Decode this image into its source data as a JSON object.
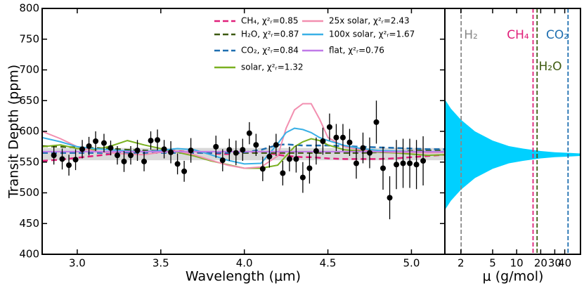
{
  "chart_data": [
    {
      "type": "line",
      "xlabel": "Wavelength (μm)",
      "ylabel": "Transit Depth (ppm)",
      "xlim": [
        2.79,
        5.2
      ],
      "ylim": [
        400,
        800
      ],
      "xticks": [
        {
          "value": 3.0,
          "label": "3.0"
        },
        {
          "value": 3.5,
          "label": "3.5"
        },
        {
          "value": 4.0,
          "label": "4.0"
        },
        {
          "value": 4.5,
          "label": "4.5"
        },
        {
          "value": 5.0,
          "label": "5.0"
        }
      ],
      "yticks": [
        400,
        450,
        500,
        550,
        600,
        650,
        700,
        750,
        800
      ],
      "band": {
        "low": 553,
        "high": 573,
        "color": "#cfcfcf"
      },
      "series": [
        {
          "name": "CH₄, χ²ᵣ=0.85",
          "color": "#e0207a",
          "style": "dashed",
          "x": [
            2.79,
            2.9,
            3.0,
            3.1,
            3.2,
            3.3,
            3.4,
            3.5,
            3.6,
            3.7,
            3.8,
            3.9,
            4.0,
            4.1,
            4.2,
            4.25,
            4.3,
            4.35,
            4.4,
            4.45,
            4.5,
            4.6,
            4.7,
            4.8,
            4.9,
            5.0,
            5.1,
            5.2
          ],
          "values": [
            552,
            554,
            557,
            560,
            563,
            566,
            568,
            569,
            568,
            566,
            564,
            563,
            565,
            567,
            562,
            560,
            559,
            558,
            558,
            557,
            556,
            555,
            555,
            555,
            556,
            558,
            560,
            562
          ]
        },
        {
          "name": "H₂O, χ²ᵣ=0.87",
          "color": "#3d5a10",
          "style": "dashed",
          "x": [
            2.79,
            2.9,
            3.0,
            3.1,
            3.2,
            3.3,
            3.4,
            3.5,
            3.6,
            3.7,
            3.8,
            3.9,
            4.0,
            4.1,
            4.2,
            4.25,
            4.3,
            4.35,
            4.4,
            4.45,
            4.5,
            4.6,
            4.7,
            4.8,
            4.9,
            5.0,
            5.1,
            5.2
          ],
          "values": [
            576,
            575,
            574,
            573,
            572,
            570,
            569,
            568,
            567,
            566,
            566,
            565,
            565,
            565,
            565,
            565,
            565,
            565,
            565,
            565,
            565,
            565,
            565,
            566,
            567,
            568,
            569,
            569
          ]
        },
        {
          "name": "CO₂, χ²ᵣ=0.84",
          "color": "#1f6fb0",
          "style": "dashed",
          "x": [
            2.79,
            2.9,
            3.0,
            3.1,
            3.2,
            3.3,
            3.4,
            3.5,
            3.6,
            3.7,
            3.8,
            3.9,
            4.0,
            4.1,
            4.2,
            4.25,
            4.3,
            4.35,
            4.4,
            4.45,
            4.5,
            4.6,
            4.7,
            4.8,
            4.9,
            5.0,
            5.1,
            5.2
          ],
          "values": [
            565,
            565,
            565,
            565,
            565,
            565,
            565,
            565,
            565,
            565,
            565,
            565,
            566,
            570,
            578,
            579,
            578,
            577,
            577,
            577,
            577,
            576,
            575,
            574,
            573,
            572,
            571,
            571
          ]
        },
        {
          "name": "solar, χ²ᵣ=1.32",
          "color": "#7ab020",
          "style": "solid",
          "x": [
            2.79,
            2.9,
            3.0,
            3.1,
            3.2,
            3.3,
            3.4,
            3.5,
            3.6,
            3.7,
            3.8,
            3.9,
            4.0,
            4.1,
            4.2,
            4.25,
            4.3,
            4.35,
            4.4,
            4.45,
            4.5,
            4.6,
            4.7,
            4.8,
            4.9,
            5.0,
            5.1,
            5.2
          ],
          "values": [
            575,
            578,
            572,
            570,
            576,
            585,
            578,
            572,
            566,
            560,
            552,
            546,
            540,
            540,
            545,
            560,
            575,
            583,
            588,
            585,
            578,
            570,
            568,
            566,
            565,
            563,
            561,
            562
          ]
        },
        {
          "name": "25x solar, χ²ᵣ=2.43",
          "color": "#f28fb0",
          "style": "solid",
          "x": [
            2.79,
            2.9,
            3.0,
            3.1,
            3.2,
            3.3,
            3.4,
            3.5,
            3.6,
            3.7,
            3.8,
            3.9,
            4.0,
            4.1,
            4.2,
            4.25,
            4.3,
            4.35,
            4.4,
            4.45,
            4.5,
            4.6,
            4.7,
            4.8,
            4.9,
            5.0,
            5.1,
            5.2
          ],
          "values": [
            600,
            588,
            575,
            568,
            565,
            563,
            562,
            566,
            568,
            562,
            553,
            545,
            540,
            542,
            560,
            605,
            635,
            645,
            645,
            620,
            590,
            575,
            570,
            567,
            566,
            566,
            565,
            566
          ]
        },
        {
          "name": "100x solar, χ²ᵣ=1.67",
          "color": "#3ab0e6",
          "style": "solid",
          "x": [
            2.79,
            2.9,
            3.0,
            3.1,
            3.2,
            3.3,
            3.4,
            3.5,
            3.6,
            3.7,
            3.8,
            3.9,
            4.0,
            4.1,
            4.2,
            4.25,
            4.3,
            4.35,
            4.4,
            4.45,
            4.5,
            4.6,
            4.7,
            4.8,
            4.9,
            5.0,
            5.1,
            5.2
          ],
          "values": [
            590,
            583,
            575,
            572,
            570,
            568,
            567,
            569,
            572,
            570,
            562,
            553,
            547,
            548,
            580,
            598,
            605,
            603,
            598,
            590,
            585,
            577,
            572,
            569,
            568,
            567,
            567,
            567
          ]
        },
        {
          "name": "flat, χ²ᵣ=0.76",
          "color": "#c07ae8",
          "style": "solid",
          "x": [
            2.79,
            5.2
          ],
          "values": [
            567,
            567
          ]
        }
      ],
      "points": {
        "color": "#000000",
        "x": [
          2.86,
          2.91,
          2.95,
          2.99,
          3.03,
          3.07,
          3.11,
          3.16,
          3.2,
          3.24,
          3.28,
          3.32,
          3.36,
          3.4,
          3.44,
          3.48,
          3.52,
          3.56,
          3.6,
          3.64,
          3.68,
          3.83,
          3.87,
          3.91,
          3.95,
          3.99,
          4.03,
          4.07,
          4.11,
          4.15,
          4.19,
          4.23,
          4.27,
          4.31,
          4.35,
          4.39,
          4.43,
          4.47,
          4.51,
          4.55,
          4.59,
          4.63,
          4.67,
          4.71,
          4.75,
          4.79,
          4.83,
          4.87,
          4.91,
          4.95,
          4.99,
          5.03,
          5.07
        ],
        "values": [
          561,
          555,
          545,
          554,
          571,
          576,
          584,
          581,
          573,
          561,
          551,
          561,
          569,
          551,
          585,
          586,
          571,
          566,
          547,
          535,
          569,
          575,
          553,
          570,
          565,
          570,
          597,
          578,
          539,
          559,
          578,
          532,
          555,
          555,
          525,
          540,
          568,
          584,
          607,
          590,
          590,
          582,
          548,
          573,
          565,
          615,
          540,
          492,
          546,
          548,
          548,
          546,
          552
        ],
        "errors": [
          15,
          17,
          17,
          17,
          15,
          15,
          16,
          15,
          12,
          15,
          17,
          15,
          17,
          16,
          15,
          17,
          15,
          18,
          17,
          17,
          20,
          18,
          18,
          18,
          20,
          18,
          18,
          18,
          20,
          18,
          18,
          20,
          20,
          22,
          25,
          25,
          22,
          22,
          22,
          22,
          22,
          22,
          25,
          25,
          25,
          35,
          35,
          35,
          40,
          40,
          40,
          40,
          40
        ]
      }
    },
    {
      "type": "area",
      "xlabel": "μ (g/mol)",
      "log_x": true,
      "xlim": [
        1.26,
        63
      ],
      "ylim": [
        400,
        800
      ],
      "xticks": [
        2,
        5,
        10,
        20,
        30,
        40
      ],
      "color": "#00d0ff",
      "x": [
        1.26,
        1.5,
        2,
        3,
        5,
        8,
        12,
        20,
        30,
        45,
        63
      ],
      "upper": [
        652,
        637,
        619,
        600,
        585,
        576,
        572,
        568,
        566,
        565,
        564
      ],
      "lower": [
        472,
        487,
        505,
        524,
        539,
        548,
        552,
        556,
        558,
        559,
        560
      ],
      "markers": [
        {
          "label": "H₂",
          "x": 2.016,
          "color": "#888888"
        },
        {
          "label": "CH₄",
          "x": 16.04,
          "color": "#e0207a"
        },
        {
          "label": "H₂O",
          "x": 18.02,
          "color": "#3d5a10"
        },
        {
          "label": "CO₂",
          "x": 44.01,
          "color": "#1f6fb0"
        }
      ]
    }
  ]
}
